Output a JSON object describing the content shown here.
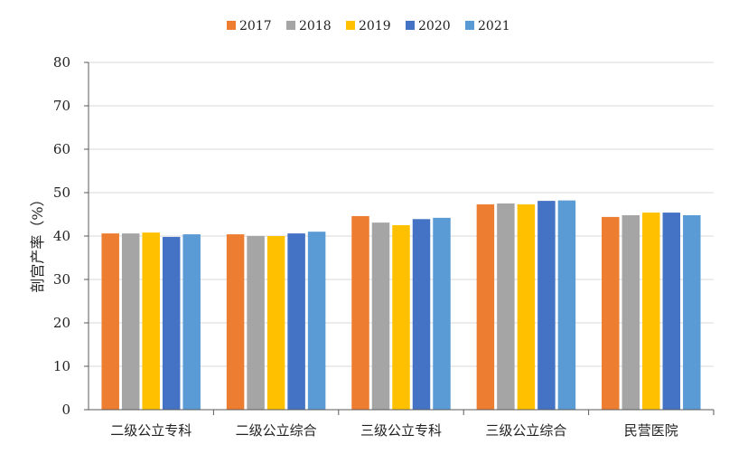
{
  "chart_data": {
    "type": "bar",
    "categories": [
      "二级公立专科",
      "二级公立综合",
      "三级公立专科",
      "三级公立综合",
      "民营医院"
    ],
    "series": [
      {
        "name": "2017",
        "color": "#ED7D31",
        "values": [
          40.6,
          40.4,
          44.6,
          47.3,
          44.4
        ]
      },
      {
        "name": "2018",
        "color": "#A5A5A5",
        "values": [
          40.6,
          40.0,
          43.1,
          47.5,
          44.8
        ]
      },
      {
        "name": "2019",
        "color": "#FFC000",
        "values": [
          40.8,
          40.0,
          42.5,
          47.3,
          45.4
        ]
      },
      {
        "name": "2020",
        "color": "#4472C4",
        "values": [
          39.8,
          40.6,
          43.9,
          48.1,
          45.4
        ]
      },
      {
        "name": "2021",
        "color": "#5B9BD5",
        "values": [
          40.4,
          41.0,
          44.2,
          48.2,
          44.8
        ]
      }
    ],
    "ylabel": "剖宫产率（%）",
    "xlabel": "",
    "ylim": [
      0,
      80
    ],
    "yticks": [
      0,
      10,
      20,
      30,
      40,
      50,
      60,
      70,
      80
    ],
    "grid": true,
    "legend_position": "top"
  }
}
